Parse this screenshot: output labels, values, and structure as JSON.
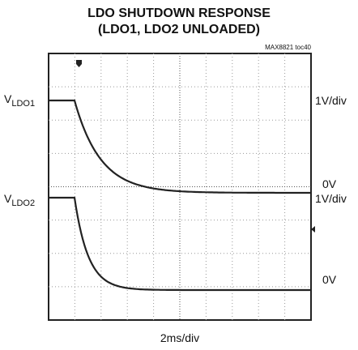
{
  "chart_data": {
    "type": "scope",
    "title": [
      "LDO SHUTDOWN RESPONSE",
      "(LDO1, LDO2 UNLOADED)"
    ],
    "figure_id": "MAX8821 toc40",
    "channels": [
      {
        "label": "V",
        "label_sub": "LDO1",
        "scale": "1V/div",
        "ground": "0V"
      },
      {
        "label": "V",
        "label_sub": "LDO2",
        "scale": "1V/div",
        "ground": "0V"
      }
    ],
    "time_scale": "2ms/div"
  }
}
